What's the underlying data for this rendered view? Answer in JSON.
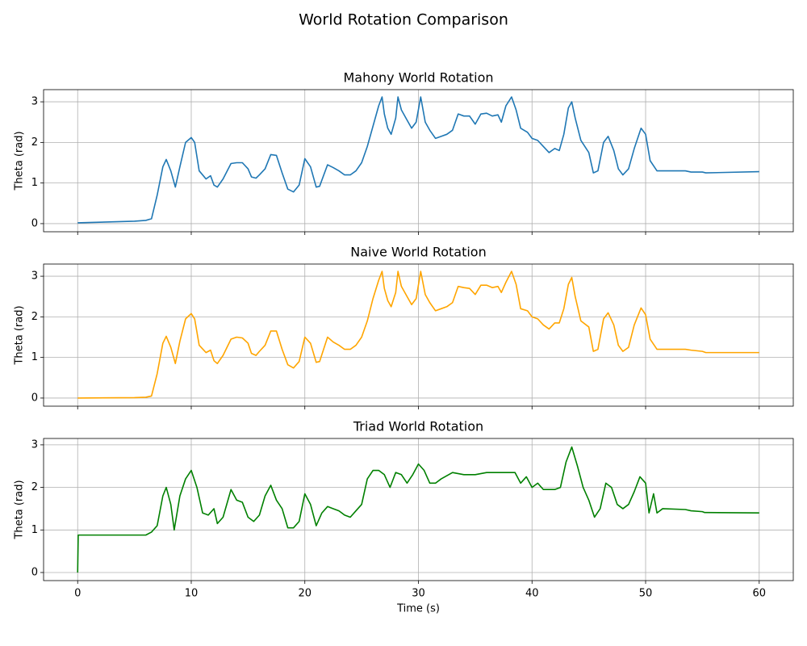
{
  "title": "World Rotation Comparison",
  "chart_data": [
    {
      "type": "line",
      "title": "Mahony World Rotation",
      "ylabel": "Theta (rad)",
      "color": "#1f77b4",
      "grid": true,
      "xlim": [
        -3,
        63
      ],
      "xticks": [
        0,
        10,
        20,
        30,
        40,
        50,
        60
      ],
      "ylim": [
        -0.2,
        3.3
      ],
      "yticks": [
        0,
        1,
        2,
        3
      ],
      "x": [
        0,
        5,
        6,
        6.5,
        7,
        7.5,
        7.8,
        8.2,
        8.6,
        9,
        9.5,
        10,
        10.3,
        10.7,
        11.3,
        11.7,
        12,
        12.3,
        12.8,
        13.5,
        14,
        14.5,
        15,
        15.3,
        15.7,
        16,
        16.5,
        17,
        17.5,
        18,
        18.5,
        19,
        19.5,
        20,
        20.5,
        21,
        21.3,
        22,
        22.5,
        23,
        23.5,
        24,
        24.5,
        25,
        25.5,
        26,
        26.5,
        26.8,
        27,
        27.3,
        27.6,
        28,
        28.2,
        28.5,
        29,
        29.4,
        29.8,
        30.2,
        30.6,
        31,
        31.5,
        32,
        32.5,
        33,
        33.5,
        34,
        34.5,
        35,
        35.5,
        36,
        36.5,
        37,
        37.3,
        37.7,
        38.2,
        38.6,
        39,
        39.6,
        40,
        40.5,
        41,
        41.5,
        42,
        42.4,
        42.8,
        43.2,
        43.5,
        43.8,
        44.3,
        45,
        45.4,
        45.8,
        46.3,
        46.7,
        47.2,
        47.6,
        48,
        48.5,
        49,
        49.6,
        50,
        50.4,
        51,
        53.5,
        54,
        55,
        55.3,
        60
      ],
      "values": [
        0.02,
        0.06,
        0.08,
        0.12,
        0.7,
        1.4,
        1.58,
        1.3,
        0.9,
        1.4,
        2.0,
        2.12,
        2.0,
        1.3,
        1.1,
        1.18,
        0.95,
        0.9,
        1.1,
        1.48,
        1.5,
        1.5,
        1.35,
        1.15,
        1.12,
        1.2,
        1.35,
        1.7,
        1.68,
        1.25,
        0.85,
        0.78,
        0.95,
        1.6,
        1.4,
        0.9,
        0.92,
        1.45,
        1.38,
        1.3,
        1.2,
        1.2,
        1.3,
        1.5,
        1.9,
        2.4,
        2.9,
        3.12,
        2.7,
        2.35,
        2.2,
        2.6,
        3.12,
        2.8,
        2.55,
        2.35,
        2.5,
        3.12,
        2.5,
        2.3,
        2.1,
        2.15,
        2.2,
        2.3,
        2.7,
        2.65,
        2.65,
        2.45,
        2.7,
        2.72,
        2.65,
        2.68,
        2.5,
        2.9,
        3.12,
        2.8,
        2.35,
        2.25,
        2.1,
        2.05,
        1.9,
        1.75,
        1.85,
        1.8,
        2.2,
        2.85,
        3.0,
        2.6,
        2.05,
        1.75,
        1.25,
        1.3,
        2.0,
        2.15,
        1.8,
        1.35,
        1.2,
        1.35,
        1.85,
        2.35,
        2.2,
        1.55,
        1.3,
        1.3,
        1.27,
        1.27,
        1.25,
        1.28
      ]
    },
    {
      "type": "line",
      "title": "Naive World Rotation",
      "ylabel": "Theta (rad)",
      "color": "#ffa500",
      "grid": true,
      "xlim": [
        -3,
        63
      ],
      "xticks": [
        0,
        10,
        20,
        30,
        40,
        50,
        60
      ],
      "ylim": [
        -0.2,
        3.3
      ],
      "yticks": [
        0,
        1,
        2,
        3
      ],
      "x": [
        0,
        5,
        6,
        6.5,
        7,
        7.5,
        7.8,
        8.2,
        8.6,
        9,
        9.5,
        10,
        10.3,
        10.7,
        11.3,
        11.7,
        12,
        12.3,
        12.8,
        13.5,
        14,
        14.5,
        15,
        15.3,
        15.7,
        16,
        16.5,
        17,
        17.5,
        18,
        18.5,
        19,
        19.5,
        20,
        20.5,
        21,
        21.3,
        22,
        22.5,
        23,
        23.5,
        24,
        24.5,
        25,
        25.5,
        26,
        26.5,
        26.8,
        27,
        27.3,
        27.6,
        28,
        28.2,
        28.5,
        29,
        29.4,
        29.8,
        30.2,
        30.6,
        31,
        31.5,
        32,
        32.5,
        33,
        33.5,
        34,
        34.5,
        35,
        35.5,
        36,
        36.5,
        37,
        37.3,
        37.7,
        38.2,
        38.6,
        39,
        39.6,
        40,
        40.5,
        41,
        41.5,
        42,
        42.4,
        42.8,
        43.2,
        43.5,
        43.8,
        44.3,
        45,
        45.4,
        45.8,
        46.3,
        46.7,
        47.2,
        47.6,
        48,
        48.5,
        49,
        49.6,
        50,
        50.4,
        51,
        53.5,
        54,
        55,
        55.3,
        60
      ],
      "values": [
        0.0,
        0.01,
        0.02,
        0.05,
        0.6,
        1.35,
        1.52,
        1.25,
        0.85,
        1.4,
        1.95,
        2.08,
        1.95,
        1.3,
        1.12,
        1.18,
        0.92,
        0.85,
        1.05,
        1.45,
        1.5,
        1.48,
        1.35,
        1.1,
        1.05,
        1.15,
        1.3,
        1.65,
        1.65,
        1.2,
        0.82,
        0.74,
        0.9,
        1.5,
        1.35,
        0.88,
        0.9,
        1.5,
        1.38,
        1.3,
        1.2,
        1.2,
        1.3,
        1.5,
        1.9,
        2.45,
        2.9,
        3.12,
        2.7,
        2.4,
        2.25,
        2.6,
        3.12,
        2.75,
        2.5,
        2.3,
        2.45,
        3.12,
        2.55,
        2.35,
        2.15,
        2.2,
        2.25,
        2.35,
        2.75,
        2.72,
        2.7,
        2.55,
        2.78,
        2.78,
        2.72,
        2.75,
        2.6,
        2.85,
        3.12,
        2.8,
        2.2,
        2.15,
        2.0,
        1.95,
        1.8,
        1.7,
        1.85,
        1.85,
        2.2,
        2.8,
        2.97,
        2.5,
        1.9,
        1.75,
        1.15,
        1.2,
        1.95,
        2.1,
        1.8,
        1.3,
        1.15,
        1.25,
        1.8,
        2.22,
        2.05,
        1.45,
        1.2,
        1.2,
        1.18,
        1.15,
        1.12,
        1.12
      ]
    },
    {
      "type": "line",
      "title": "Triad World Rotation",
      "ylabel": "Theta (rad)",
      "xlabel": "Time (s)",
      "color": "#008000",
      "grid": true,
      "xlim": [
        -3,
        63
      ],
      "xticks": [
        0,
        10,
        20,
        30,
        40,
        50,
        60
      ],
      "ylim": [
        -0.19,
        3.15
      ],
      "yticks": [
        0,
        1,
        2,
        3
      ],
      "x": [
        0,
        0.05,
        6,
        6.5,
        7,
        7.5,
        7.8,
        8.2,
        8.5,
        9,
        9.5,
        10,
        10.5,
        11,
        11.5,
        12,
        12.3,
        12.8,
        13.5,
        14,
        14.5,
        15,
        15.5,
        16,
        16.5,
        17,
        17.5,
        18,
        18.5,
        19,
        19.5,
        20,
        20.5,
        21,
        21.5,
        22,
        22.5,
        23,
        23.5,
        24,
        24.5,
        25,
        25.5,
        26,
        26.5,
        27,
        27.5,
        28,
        28.5,
        29,
        29.5,
        30,
        30.5,
        31,
        31.5,
        32,
        33,
        34,
        35,
        36,
        37,
        38,
        38.5,
        39,
        39.5,
        40,
        40.5,
        41,
        42,
        42.5,
        43,
        43.5,
        44,
        44.5,
        45,
        45.5,
        46,
        46.5,
        47,
        47.5,
        48,
        48.5,
        49,
        49.5,
        50,
        50.3,
        50.7,
        51,
        51.5,
        53.5,
        54,
        55,
        55.2,
        60
      ],
      "values": [
        0,
        0.88,
        0.88,
        0.95,
        1.1,
        1.8,
        2.0,
        1.6,
        1.0,
        1.8,
        2.2,
        2.4,
        2.0,
        1.4,
        1.35,
        1.5,
        1.15,
        1.3,
        1.95,
        1.7,
        1.65,
        1.3,
        1.2,
        1.35,
        1.8,
        2.05,
        1.7,
        1.5,
        1.05,
        1.05,
        1.2,
        1.85,
        1.6,
        1.1,
        1.4,
        1.55,
        1.5,
        1.45,
        1.35,
        1.3,
        1.45,
        1.6,
        2.2,
        2.4,
        2.4,
        2.3,
        2.0,
        2.35,
        2.3,
        2.1,
        2.3,
        2.55,
        2.4,
        2.1,
        2.1,
        2.2,
        2.35,
        2.3,
        2.3,
        2.35,
        2.35,
        2.35,
        2.35,
        2.1,
        2.25,
        2.0,
        2.1,
        1.95,
        1.95,
        2.0,
        2.6,
        2.95,
        2.5,
        2.0,
        1.7,
        1.3,
        1.5,
        2.1,
        2.0,
        1.6,
        1.5,
        1.6,
        1.9,
        2.25,
        2.1,
        1.4,
        1.85,
        1.4,
        1.5,
        1.48,
        1.45,
        1.43,
        1.41,
        1.4
      ]
    }
  ]
}
